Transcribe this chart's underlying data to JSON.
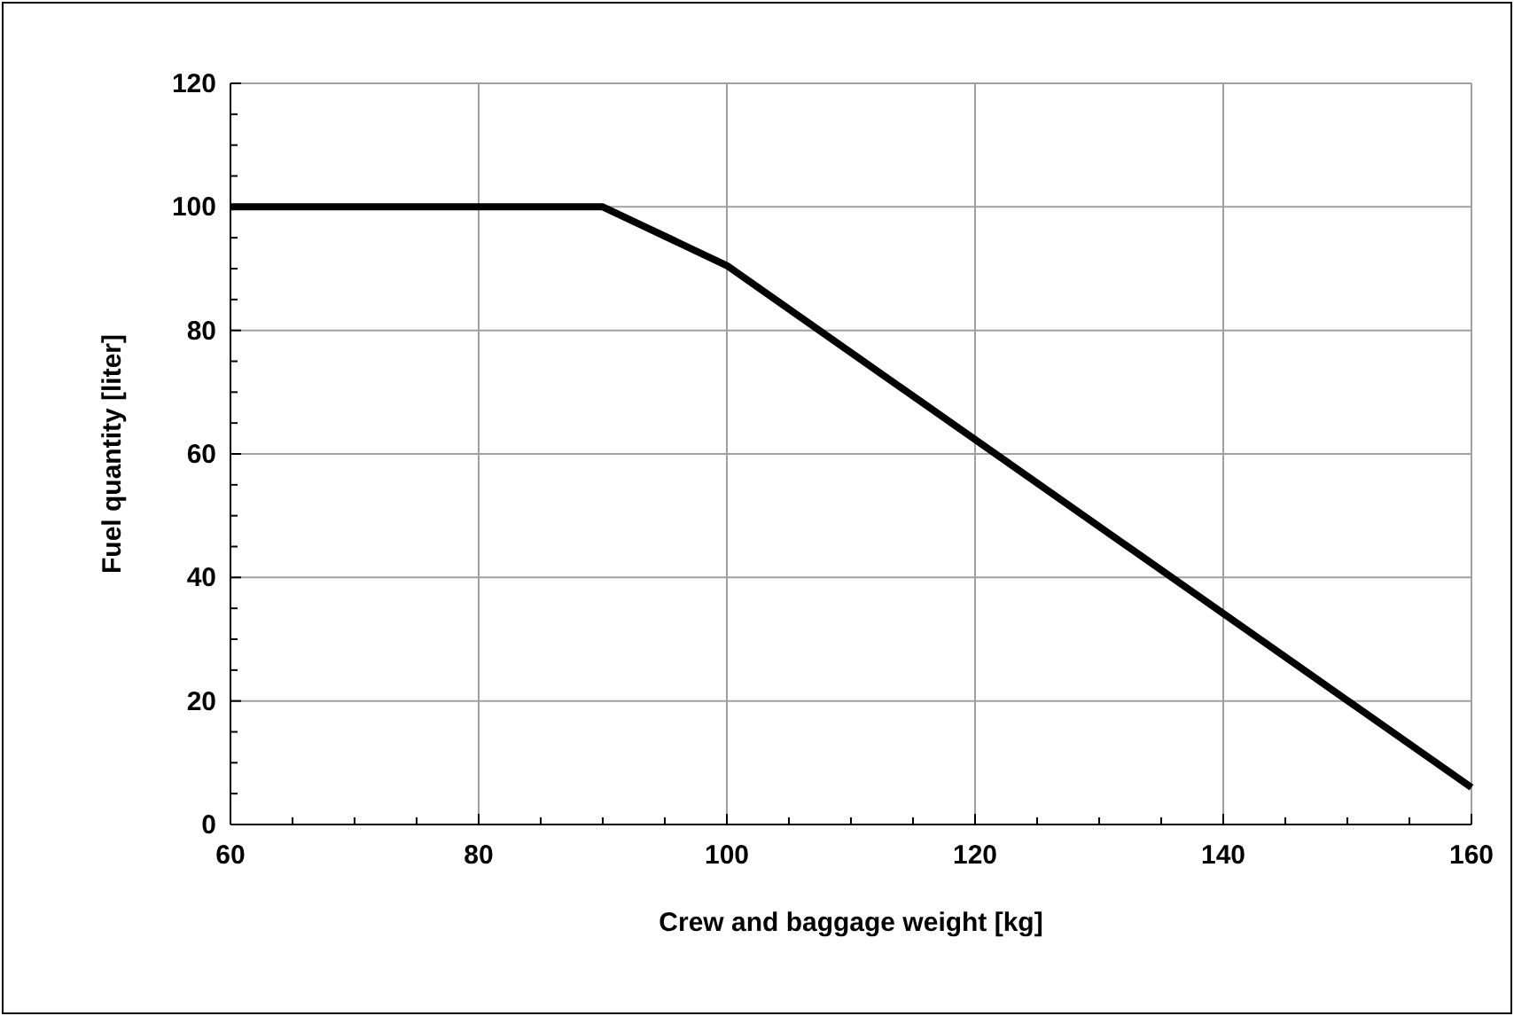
{
  "chart_data": {
    "type": "line",
    "xlabel": "Crew and baggage weight [kg]",
    "ylabel": "Fuel quantity [liter]",
    "x": [
      60,
      90,
      100,
      160
    ],
    "series": [
      {
        "color": "#000000",
        "values": [
          100,
          100,
          90.5,
          6
        ]
      }
    ],
    "xlim": [
      60,
      160
    ],
    "ylim": [
      0,
      120
    ],
    "xticks": [
      60,
      {
        "value": 65,
        "label": null
      },
      {
        "value": 70,
        "label": null
      },
      {
        "value": 75,
        "label": null
      },
      80,
      {
        "value": 85,
        "label": null
      },
      {
        "value": 90,
        "label": null
      },
      {
        "value": 95,
        "label": null
      },
      100,
      {
        "value": 105,
        "label": null
      },
      {
        "value": 110,
        "label": null
      },
      {
        "value": 115,
        "label": null
      },
      120,
      {
        "value": 125,
        "label": null
      },
      {
        "value": 130,
        "label": null
      },
      {
        "value": 135,
        "label": null
      },
      140,
      {
        "value": 145,
        "label": null
      },
      {
        "value": 150,
        "label": null
      },
      {
        "value": 155,
        "label": null
      },
      160
    ],
    "yticks": [
      0,
      {
        "value": 5,
        "label": null
      },
      {
        "value": 10,
        "label": null
      },
      {
        "value": 15,
        "label": null
      },
      20,
      {
        "value": 25,
        "label": null
      },
      {
        "value": 30,
        "label": null
      },
      {
        "value": 35,
        "label": null
      },
      40,
      {
        "value": 45,
        "label": null
      },
      {
        "value": 50,
        "label": null
      },
      {
        "value": 55,
        "label": null
      },
      60,
      {
        "value": 65,
        "label": null
      },
      {
        "value": 70,
        "label": null
      },
      {
        "value": 75,
        "label": null
      },
      80,
      {
        "value": 85,
        "label": null
      },
      {
        "value": 90,
        "label": null
      },
      {
        "value": 95,
        "label": null
      },
      100,
      {
        "value": 105,
        "label": null
      },
      {
        "value": 110,
        "label": null
      },
      {
        "value": 115,
        "label": null
      },
      120
    ],
    "grid": true,
    "marker": "none",
    "line_style": "solid"
  }
}
